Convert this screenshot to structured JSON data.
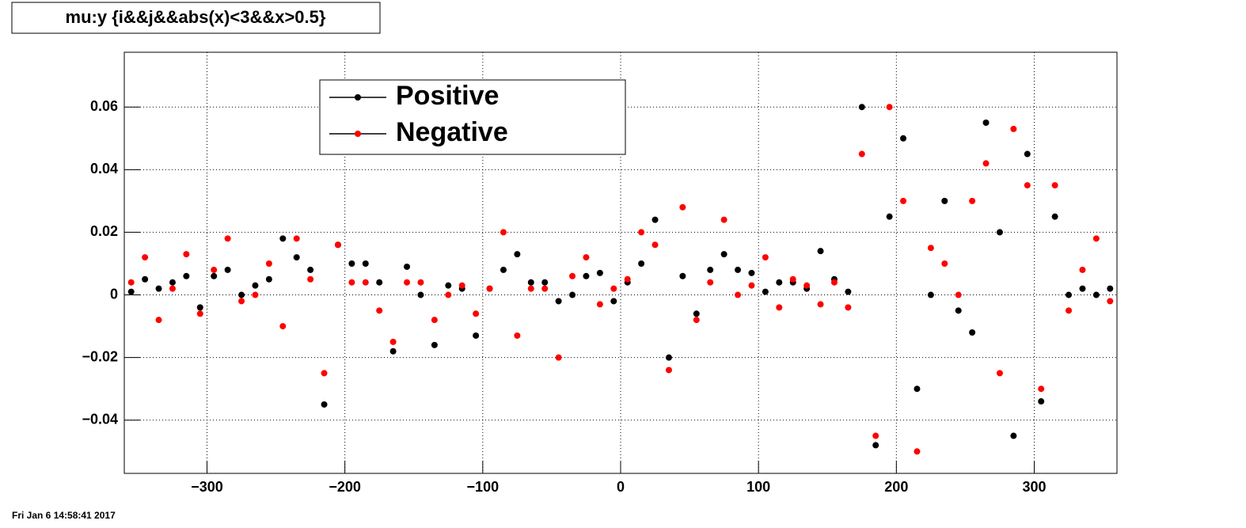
{
  "chart_data": {
    "type": "scatter",
    "title": "mu:y {i&&j&&abs(x)<3&&x>0.5}",
    "footer": "Fri Jan  6 14:58:41 2017",
    "x": [
      -355,
      -345,
      -335,
      -325,
      -315,
      -305,
      -295,
      -285,
      -275,
      -265,
      -255,
      -245,
      -235,
      -225,
      -215,
      -205,
      -195,
      -185,
      -175,
      -165,
      -155,
      -145,
      -135,
      -125,
      -115,
      -105,
      -95,
      -85,
      -75,
      -65,
      -55,
      -45,
      -35,
      -25,
      -15,
      -5,
      5,
      15,
      25,
      35,
      45,
      55,
      65,
      75,
      85,
      95,
      105,
      115,
      125,
      135,
      145,
      155,
      165,
      175,
      185,
      195,
      205,
      215,
      225,
      235,
      245,
      255,
      265,
      275,
      285,
      295,
      305,
      315,
      325,
      335,
      345,
      355
    ],
    "series": [
      {
        "name": "Positive",
        "color": "#000000",
        "values": [
          0.001,
          0.005,
          0.002,
          0.004,
          0.006,
          -0.004,
          0.006,
          0.008,
          0.0,
          0.003,
          0.005,
          0.018,
          0.012,
          0.008,
          -0.035,
          0.016,
          0.01,
          0.01,
          0.004,
          -0.018,
          0.009,
          0.0,
          -0.016,
          0.003,
          0.002,
          -0.013,
          0.002,
          0.008,
          0.013,
          0.004,
          0.004,
          -0.002,
          0.0,
          0.006,
          0.007,
          -0.002,
          0.004,
          0.01,
          0.024,
          -0.02,
          0.006,
          -0.006,
          0.008,
          0.013,
          0.008,
          0.007,
          0.001,
          0.004,
          0.004,
          0.002,
          0.014,
          0.005,
          0.001,
          0.06,
          -0.048,
          0.025,
          0.05,
          -0.03,
          0.0,
          0.03,
          -0.005,
          -0.012,
          0.055,
          0.02,
          -0.045,
          0.045,
          -0.034,
          0.025,
          0.0,
          0.002,
          0.0,
          0.002
        ]
      },
      {
        "name": "Negative",
        "color": "#ff0000",
        "values": [
          0.004,
          0.012,
          -0.008,
          0.002,
          0.013,
          -0.006,
          0.008,
          0.018,
          -0.002,
          0.0,
          0.01,
          -0.01,
          0.018,
          0.005,
          -0.025,
          0.016,
          0.004,
          0.004,
          -0.005,
          -0.015,
          0.004,
          0.004,
          -0.008,
          0.0,
          0.003,
          -0.006,
          0.002,
          0.02,
          -0.013,
          0.002,
          0.002,
          -0.02,
          0.006,
          0.012,
          -0.003,
          0.002,
          0.005,
          0.02,
          0.016,
          -0.024,
          0.028,
          -0.008,
          0.004,
          0.024,
          0.0,
          0.003,
          0.012,
          -0.004,
          0.005,
          0.003,
          -0.003,
          0.004,
          -0.004,
          0.045,
          -0.045,
          0.06,
          0.03,
          -0.05,
          0.015,
          0.01,
          0.0,
          0.03,
          0.042,
          -0.025,
          0.053,
          0.035,
          -0.03,
          0.035,
          -0.005,
          0.008,
          0.018,
          -0.002
        ]
      }
    ],
    "xlim": [
      -360,
      360
    ],
    "ylim": [
      -0.057,
      0.0775
    ],
    "xticks": [
      {
        "value": -300,
        "label": "−300"
      },
      {
        "value": -200,
        "label": "−200"
      },
      {
        "value": -100,
        "label": "−100"
      },
      0,
      100,
      200,
      300
    ],
    "yticks": [
      {
        "value": -0.04,
        "label": "−0.04"
      },
      {
        "value": -0.02,
        "label": "−0.02"
      },
      0,
      0.02,
      0.04,
      0.06
    ],
    "grid": true
  }
}
